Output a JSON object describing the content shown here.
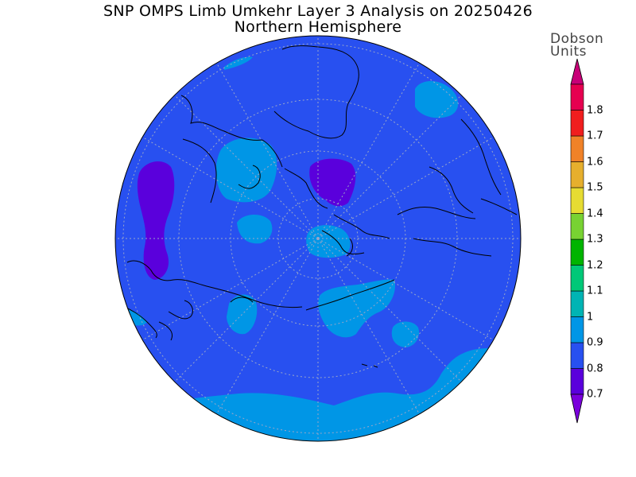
{
  "title": "SNP OMPS Limb Umkehr Layer 3 Analysis on 20250426",
  "subtitle": "Northern Hemisphere",
  "colorbar": {
    "unit_line1": "Dobson",
    "unit_line2": "Units",
    "levels": [
      "0.7",
      "0.8",
      "0.9",
      "1",
      "1.1",
      "1.2",
      "1.3",
      "1.4",
      "1.5",
      "1.6",
      "1.7",
      "1.8"
    ],
    "colors": [
      "#7a00dc",
      "#5a00dc",
      "#2850f0",
      "#0096e6",
      "#00b4b4",
      "#00c878",
      "#00b400",
      "#78d232",
      "#e6dc32",
      "#e6af2d",
      "#f08228",
      "#f01e1e",
      "#e60050",
      "#c80078"
    ]
  },
  "map": {
    "projection": "polar stereographic",
    "hemisphere": "Northern",
    "background_level_color": "#2850f0",
    "grid_lines": true
  }
}
